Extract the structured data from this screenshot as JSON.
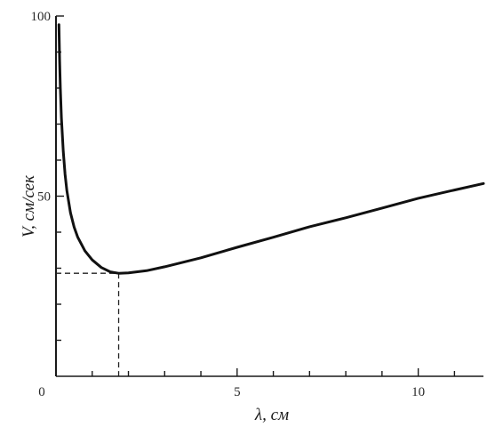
{
  "chart_data": {
    "type": "line",
    "xlabel": "λ, см",
    "ylabel": "V, см/сек",
    "xlim": [
      0,
      11.8
    ],
    "ylim": [
      0,
      100
    ],
    "x_ticks": [
      0,
      1,
      2,
      3,
      4,
      5,
      6,
      7,
      8,
      9,
      10,
      11
    ],
    "x_tick_labels": [
      {
        "value": 0,
        "label": "0"
      },
      {
        "value": 5,
        "label": "5"
      },
      {
        "value": 10,
        "label": "10"
      }
    ],
    "y_ticks": [
      0,
      10,
      20,
      30,
      40,
      50,
      60,
      70,
      80,
      90,
      100
    ],
    "y_tick_labels": [
      {
        "value": 50,
        "label": "50"
      },
      {
        "value": 100,
        "label": "100"
      }
    ],
    "grid": false,
    "series": [
      {
        "x": [
          0.08,
          0.1,
          0.12,
          0.15,
          0.2,
          0.25,
          0.3,
          0.4,
          0.5,
          0.6,
          0.8,
          1.0,
          1.25,
          1.5,
          1.73,
          2.0,
          2.5,
          3.0,
          4.0,
          5.0,
          6.0,
          7.0,
          8.0,
          9.0,
          10.0,
          11.0,
          11.8
        ],
        "y": [
          97.6,
          87.5,
          80.0,
          71.7,
          62.4,
          56.1,
          51.6,
          45.4,
          41.4,
          38.6,
          34.8,
          32.3,
          30.2,
          29.0,
          28.6,
          28.7,
          29.3,
          30.4,
          32.9,
          35.8,
          38.6,
          41.5,
          44.0,
          46.7,
          49.4,
          51.7,
          53.5
        ]
      }
    ],
    "annotations": [
      {
        "type": "dashed-guide",
        "x": 1.73,
        "y": 28.6
      }
    ],
    "colors": {
      "line": "#111111",
      "axis": "#1a1a1a",
      "guide": "#222222",
      "background": "#ffffff"
    }
  }
}
